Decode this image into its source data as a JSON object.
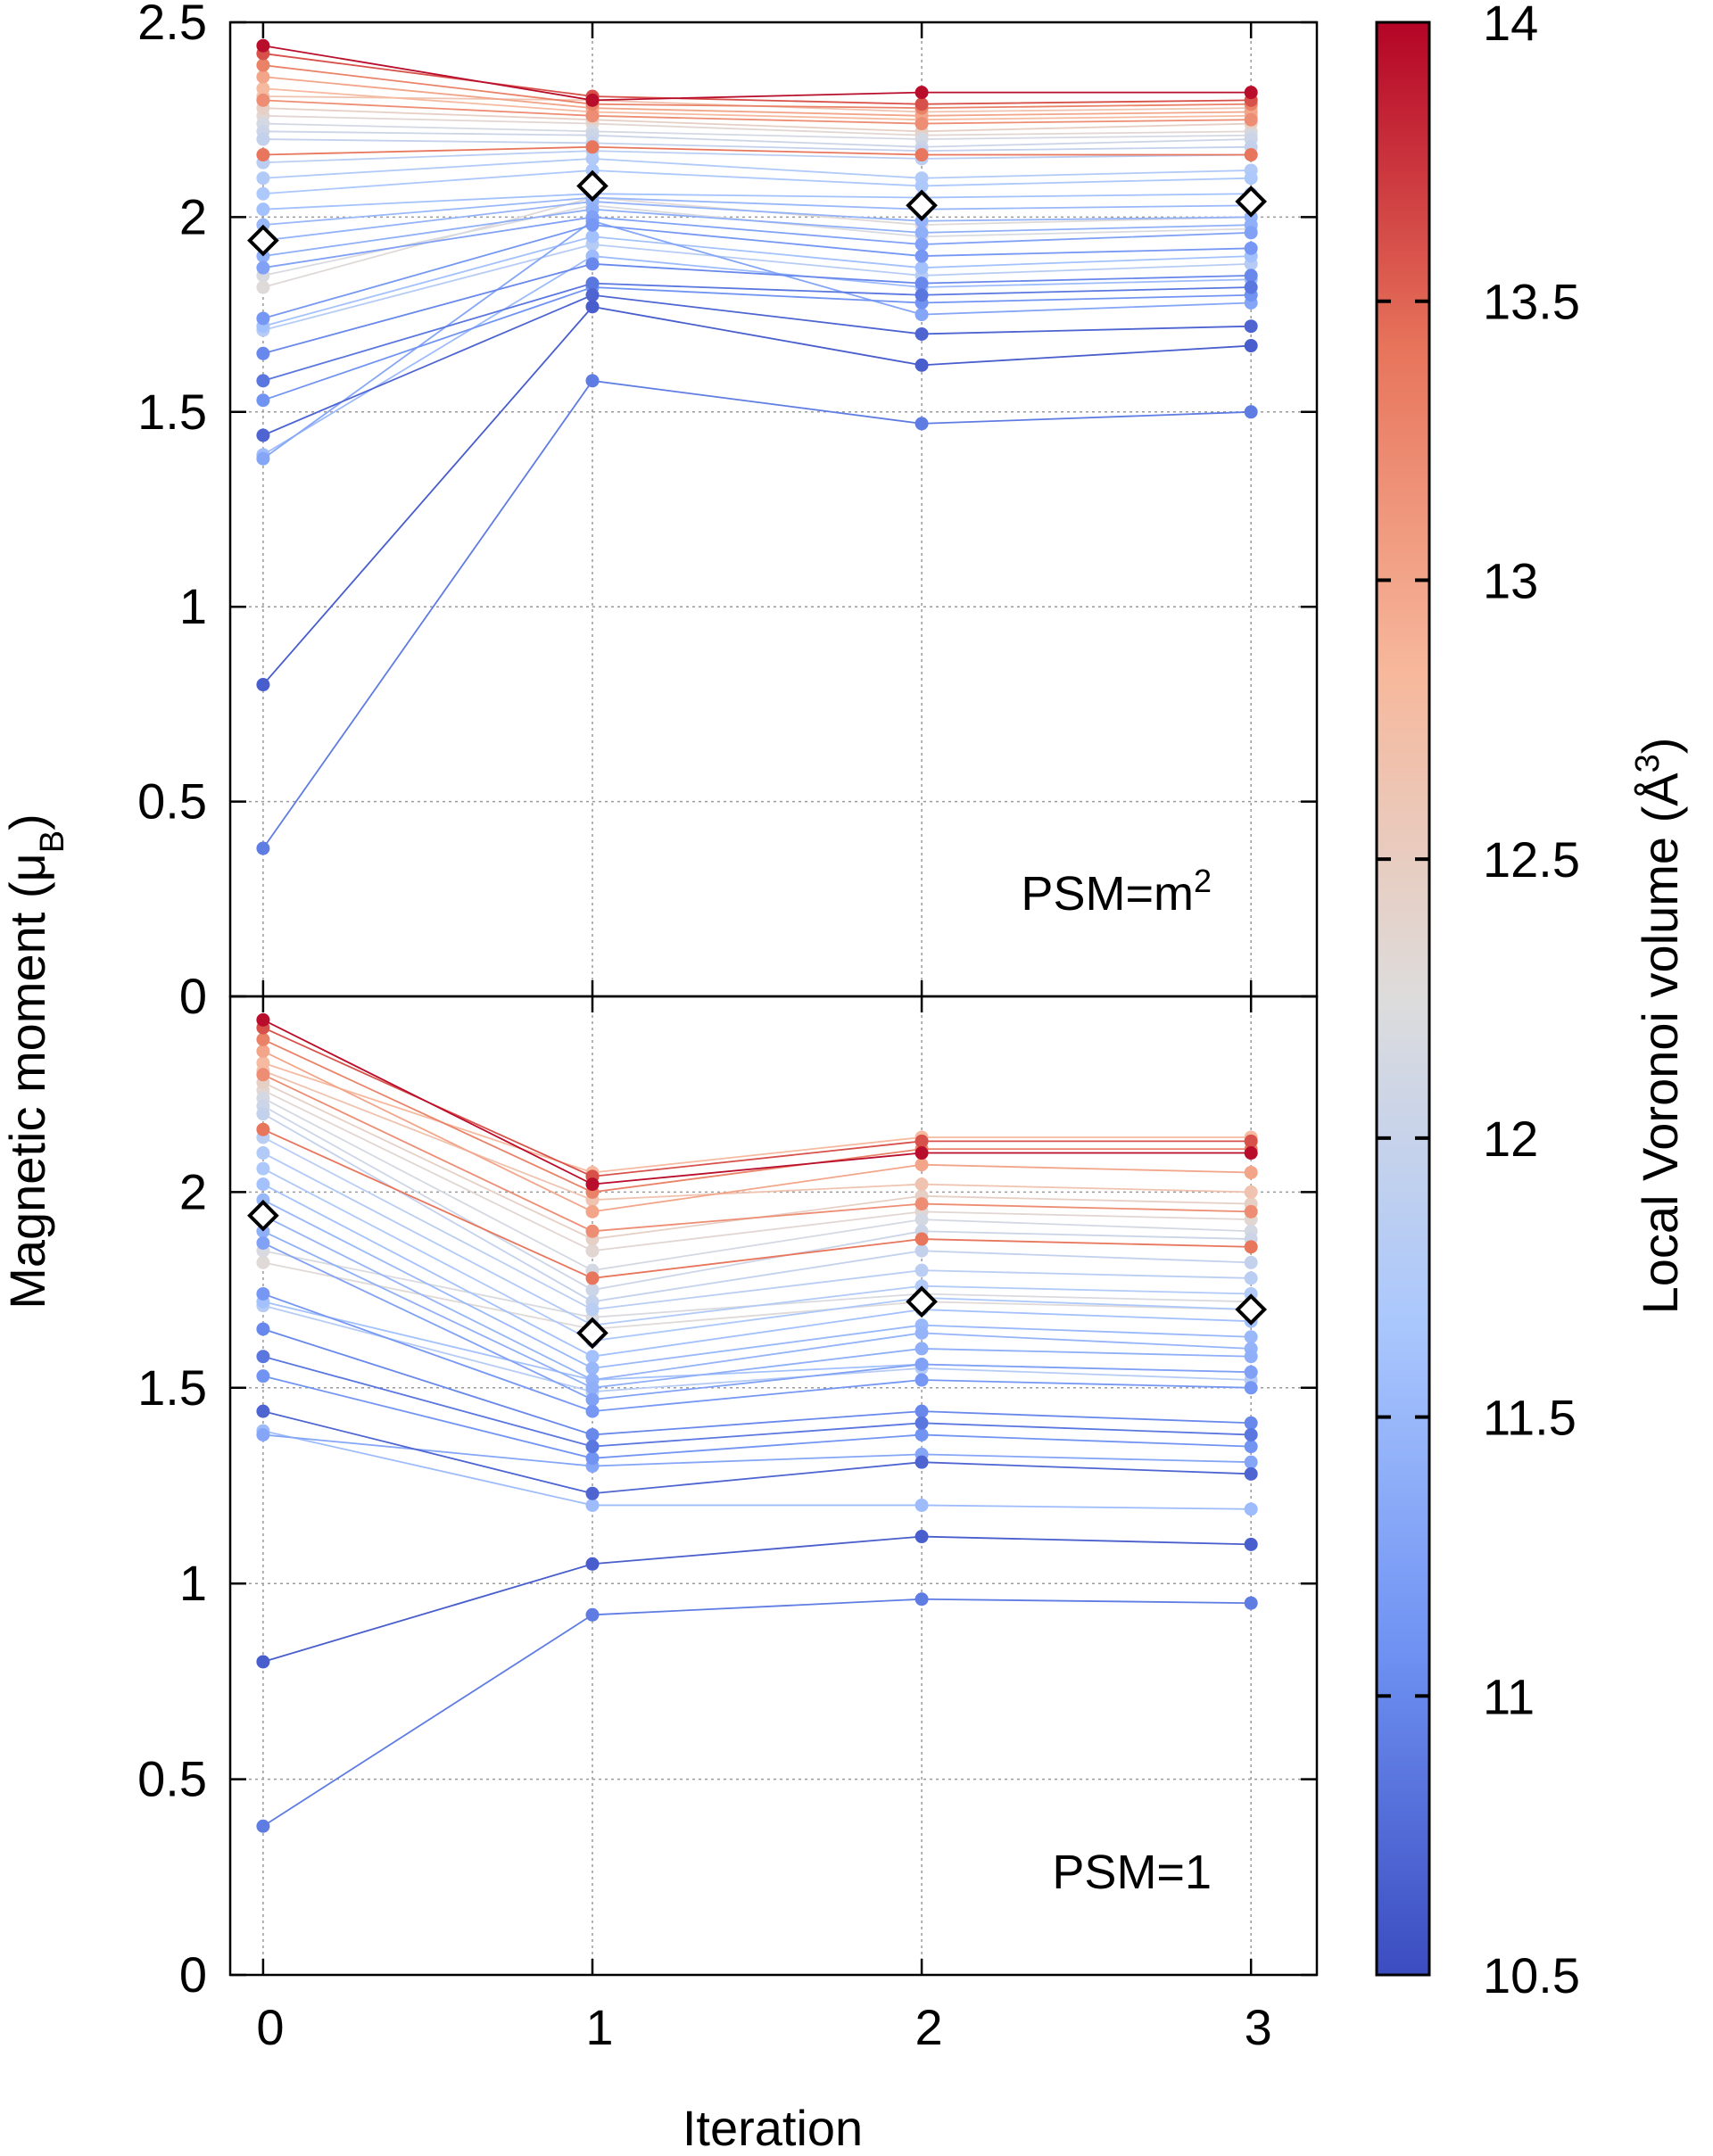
{
  "chart_data": {
    "type": "line",
    "shared": {
      "xlabel": "Iteration",
      "ylabel": "Magnetic moment (μ",
      "ylabel_sub": "B",
      "x_ticks": [
        "0",
        "1",
        "2",
        "3"
      ],
      "xlim": [
        -0.1,
        3.2
      ]
    },
    "panels": [
      {
        "annotation": "PSM=m",
        "annotation_sup": "2",
        "ylim": [
          0,
          2.5
        ],
        "y_ticks": [
          "0",
          "0.5",
          "1",
          "1.5",
          "2",
          "2.5"
        ],
        "average": [
          1.94,
          2.08,
          2.03,
          2.04
        ],
        "series": [
          {
            "volume": 13.95,
            "values": [
              2.44,
              2.3,
              2.32,
              2.32
            ]
          },
          {
            "volume": 13.6,
            "values": [
              2.42,
              2.31,
              2.29,
              2.3
            ]
          },
          {
            "volume": 13.3,
            "values": [
              2.39,
              2.29,
              2.28,
              2.29
            ]
          },
          {
            "volume": 13.0,
            "values": [
              2.36,
              2.28,
              2.26,
              2.27
            ]
          },
          {
            "volume": 12.8,
            "values": [
              2.33,
              2.27,
              2.25,
              2.26
            ]
          },
          {
            "volume": 12.65,
            "values": [
              2.31,
              2.3,
              2.27,
              2.28
            ]
          },
          {
            "volume": 13.2,
            "values": [
              2.3,
              2.26,
              2.24,
              2.25
            ]
          },
          {
            "volume": 12.45,
            "values": [
              2.28,
              2.25,
              2.22,
              2.24
            ]
          },
          {
            "volume": 12.35,
            "values": [
              2.26,
              2.24,
              2.21,
              2.22
            ]
          },
          {
            "volume": 12.15,
            "values": [
              2.24,
              2.22,
              2.2,
              2.21
            ]
          },
          {
            "volume": 12.05,
            "values": [
              2.22,
              2.21,
              2.18,
              2.2
            ]
          },
          {
            "volume": 11.95,
            "values": [
              2.2,
              2.19,
              2.17,
              2.18
            ]
          },
          {
            "volume": 13.4,
            "values": [
              2.16,
              2.18,
              2.16,
              2.16
            ]
          },
          {
            "volume": 11.85,
            "values": [
              2.14,
              2.17,
              2.15,
              2.16
            ]
          },
          {
            "volume": 11.75,
            "values": [
              2.1,
              2.15,
              2.1,
              2.12
            ]
          },
          {
            "volume": 11.7,
            "values": [
              2.06,
              2.12,
              2.08,
              2.1
            ]
          },
          {
            "volume": 11.6,
            "values": [
              2.02,
              2.06,
              2.05,
              2.06
            ]
          },
          {
            "volume": 11.5,
            "values": [
              1.98,
              2.05,
              2.02,
              2.03
            ]
          },
          {
            "volume": 11.45,
            "values": [
              1.94,
              2.04,
              1.99,
              2.0
            ]
          },
          {
            "volume": 11.4,
            "values": [
              1.9,
              2.02,
              1.96,
              1.98
            ]
          },
          {
            "volume": 11.25,
            "values": [
              1.87,
              2.0,
              1.93,
              1.96
            ]
          },
          {
            "volume": 12.2,
            "values": [
              1.85,
              2.03,
              1.95,
              1.97
            ]
          },
          {
            "volume": 12.3,
            "values": [
              1.82,
              2.05,
              1.98,
              2.0
            ]
          },
          {
            "volume": 11.15,
            "values": [
              1.74,
              1.98,
              1.9,
              1.92
            ]
          },
          {
            "volume": 11.6,
            "values": [
              1.72,
              1.95,
              1.87,
              1.9
            ]
          },
          {
            "volume": 11.8,
            "values": [
              1.71,
              1.93,
              1.85,
              1.88
            ]
          },
          {
            "volume": 11.0,
            "values": [
              1.65,
              1.88,
              1.83,
              1.85
            ]
          },
          {
            "volume": 10.85,
            "values": [
              1.58,
              1.83,
              1.8,
              1.82
            ]
          },
          {
            "volume": 11.1,
            "values": [
              1.53,
              1.82,
              1.78,
              1.8
            ]
          },
          {
            "volume": 10.7,
            "values": [
              1.44,
              1.8,
              1.7,
              1.72
            ]
          },
          {
            "volume": 11.3,
            "values": [
              1.38,
              1.99,
              1.75,
              1.78
            ]
          },
          {
            "volume": 11.55,
            "values": [
              1.39,
              1.9,
              1.82,
              1.84
            ]
          },
          {
            "volume": 10.65,
            "values": [
              0.8,
              1.77,
              1.62,
              1.67
            ]
          },
          {
            "volume": 10.9,
            "values": [
              0.38,
              1.58,
              1.47,
              1.5
            ]
          }
        ]
      },
      {
        "annotation": "PSM=1",
        "annotation_sup": "",
        "ylim": [
          0,
          2.5
        ],
        "y_ticks": [
          "0",
          "0.5",
          "1",
          "1.5",
          "2",
          ""
        ],
        "average": [
          1.94,
          1.64,
          1.72,
          1.7
        ],
        "series": [
          {
            "volume": 13.95,
            "values": [
              2.44,
              2.02,
              2.1,
              2.1
            ]
          },
          {
            "volume": 13.6,
            "values": [
              2.42,
              2.04,
              2.13,
              2.13
            ]
          },
          {
            "volume": 13.3,
            "values": [
              2.39,
              2.0,
              2.11,
              2.11
            ]
          },
          {
            "volume": 13.0,
            "values": [
              2.36,
              1.95,
              2.07,
              2.05
            ]
          },
          {
            "volume": 12.8,
            "values": [
              2.33,
              2.05,
              2.14,
              2.14
            ]
          },
          {
            "volume": 12.65,
            "values": [
              2.31,
              1.98,
              2.02,
              2.0
            ]
          },
          {
            "volume": 13.2,
            "values": [
              2.3,
              1.9,
              1.97,
              1.95
            ]
          },
          {
            "volume": 12.45,
            "values": [
              2.28,
              1.88,
              1.99,
              1.97
            ]
          },
          {
            "volume": 12.35,
            "values": [
              2.26,
              1.85,
              1.95,
              1.93
            ]
          },
          {
            "volume": 12.15,
            "values": [
              2.24,
              1.8,
              1.93,
              1.9
            ]
          },
          {
            "volume": 12.05,
            "values": [
              2.22,
              1.75,
              1.9,
              1.88
            ]
          },
          {
            "volume": 11.95,
            "values": [
              2.2,
              1.72,
              1.85,
              1.82
            ]
          },
          {
            "volume": 13.4,
            "values": [
              2.16,
              1.78,
              1.88,
              1.86
            ]
          },
          {
            "volume": 11.85,
            "values": [
              2.14,
              1.7,
              1.8,
              1.78
            ]
          },
          {
            "volume": 11.75,
            "values": [
              2.1,
              1.66,
              1.76,
              1.74
            ]
          },
          {
            "volume": 11.7,
            "values": [
              2.06,
              1.62,
              1.73,
              1.7
            ]
          },
          {
            "volume": 11.6,
            "values": [
              2.02,
              1.58,
              1.7,
              1.67
            ]
          },
          {
            "volume": 11.5,
            "values": [
              1.98,
              1.55,
              1.66,
              1.63
            ]
          },
          {
            "volume": 11.45,
            "values": [
              1.94,
              1.52,
              1.64,
              1.6
            ]
          },
          {
            "volume": 11.4,
            "values": [
              1.9,
              1.5,
              1.6,
              1.58
            ]
          },
          {
            "volume": 11.25,
            "values": [
              1.87,
              1.47,
              1.56,
              1.54
            ]
          },
          {
            "volume": 12.2,
            "values": [
              1.85,
              1.68,
              1.74,
              1.72
            ]
          },
          {
            "volume": 12.3,
            "values": [
              1.82,
              1.65,
              1.72,
              1.7
            ]
          },
          {
            "volume": 11.15,
            "values": [
              1.74,
              1.44,
              1.52,
              1.5
            ]
          },
          {
            "volume": 11.6,
            "values": [
              1.72,
              1.52,
              1.56,
              1.54
            ]
          },
          {
            "volume": 11.8,
            "values": [
              1.71,
              1.49,
              1.55,
              1.52
            ]
          },
          {
            "volume": 11.0,
            "values": [
              1.65,
              1.38,
              1.44,
              1.41
            ]
          },
          {
            "volume": 10.85,
            "values": [
              1.58,
              1.35,
              1.41,
              1.38
            ]
          },
          {
            "volume": 11.1,
            "values": [
              1.53,
              1.32,
              1.38,
              1.35
            ]
          },
          {
            "volume": 10.7,
            "values": [
              1.44,
              1.23,
              1.31,
              1.28
            ]
          },
          {
            "volume": 11.3,
            "values": [
              1.38,
              1.3,
              1.33,
              1.31
            ]
          },
          {
            "volume": 11.55,
            "values": [
              1.39,
              1.2,
              1.2,
              1.19
            ]
          },
          {
            "volume": 10.65,
            "values": [
              0.8,
              1.05,
              1.12,
              1.1
            ]
          },
          {
            "volume": 10.9,
            "values": [
              0.38,
              0.92,
              0.96,
              0.95
            ]
          }
        ]
      }
    ],
    "colorbar": {
      "label": "Local Voronoi volume (Å",
      "label_sup": "3",
      "label_close": ")",
      "range": [
        10.5,
        14
      ],
      "ticks": [
        10.5,
        11,
        11.5,
        12,
        12.5,
        13,
        13.5,
        14
      ],
      "tick_labels": [
        "10.5",
        "11",
        "11.5",
        "12",
        "12.5",
        "13",
        "13.5",
        "14"
      ],
      "colors": [
        "#3b4cc0",
        "#6f92f3",
        "#aac7fd",
        "#dddcdc",
        "#f7b89c",
        "#e7745b",
        "#b40426"
      ]
    }
  }
}
